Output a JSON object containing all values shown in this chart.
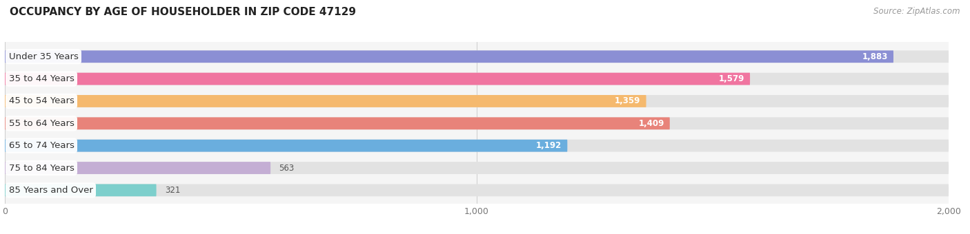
{
  "title": "OCCUPANCY BY AGE OF HOUSEHOLDER IN ZIP CODE 47129",
  "source": "Source: ZipAtlas.com",
  "categories": [
    "Under 35 Years",
    "35 to 44 Years",
    "45 to 54 Years",
    "55 to 64 Years",
    "65 to 74 Years",
    "75 to 84 Years",
    "85 Years and Over"
  ],
  "values": [
    1883,
    1579,
    1359,
    1409,
    1192,
    563,
    321
  ],
  "bar_colors": [
    "#8b8fd4",
    "#f075a0",
    "#f5b96e",
    "#e8837a",
    "#6aaede",
    "#c4aed4",
    "#7dcfcc"
  ],
  "xlim": [
    0,
    2000
  ],
  "xticks": [
    0,
    1000,
    2000
  ],
  "xtick_labels": [
    "0",
    "1,000",
    "2,000"
  ],
  "title_fontsize": 11,
  "source_fontsize": 8.5,
  "label_fontsize": 9.5,
  "value_fontsize": 8.5,
  "fig_bg_color": "#ffffff",
  "axes_bg_color": "#f5f5f5",
  "bar_bg_color": "#e2e2e2",
  "label_bg_color": "#ffffff"
}
